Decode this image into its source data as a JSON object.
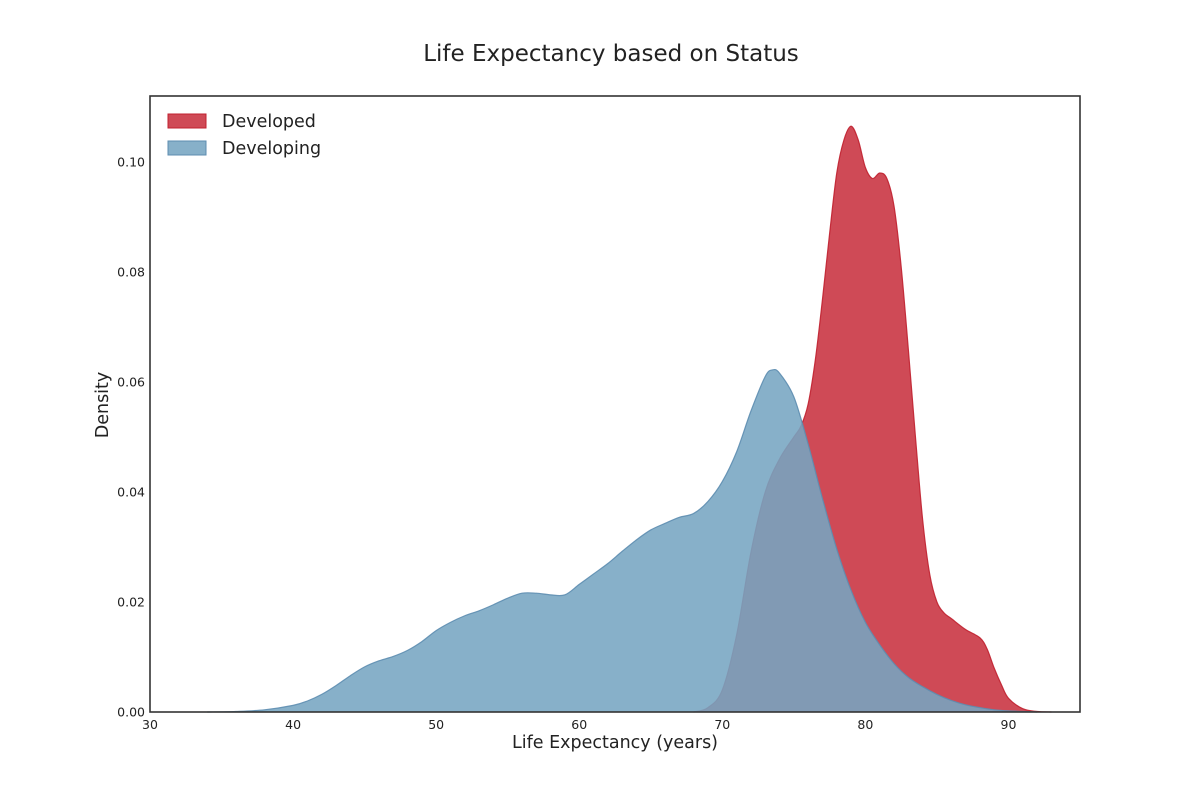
{
  "chart_data": {
    "type": "area",
    "title": "Life Expectancy based on Status",
    "xlabel": "Life Expectancy (years)",
    "ylabel": "Density",
    "xlim": [
      30,
      95
    ],
    "ylim": [
      0,
      0.112
    ],
    "x_ticks": [
      30,
      40,
      50,
      60,
      70,
      80,
      90
    ],
    "x_tick_labels": [
      "30",
      "40",
      "50",
      "60",
      "70",
      "80",
      "90"
    ],
    "y_ticks": [
      0,
      0.02,
      0.04,
      0.06,
      0.08,
      0.1
    ],
    "y_tick_labels": [
      "0.00",
      "0.02",
      "0.04",
      "0.06",
      "0.08",
      "0.10"
    ],
    "grid": false,
    "legend_position": "top-left",
    "series": [
      {
        "name": "Developed",
        "color": "#c0202f",
        "fill_color": "#c8313f",
        "x": [
          68,
          69,
          70,
          71,
          72,
          73,
          74,
          75,
          75.5,
          76,
          76.5,
          77,
          77.5,
          78,
          78.5,
          79,
          79.5,
          80,
          80.5,
          81,
          81.5,
          82,
          82.5,
          83,
          83.5,
          84,
          84.5,
          85,
          85.5,
          86,
          87,
          88,
          88.5,
          89,
          89.5,
          90,
          91,
          92,
          93
        ],
        "y": [
          0,
          0.0008,
          0.004,
          0.014,
          0.029,
          0.04,
          0.046,
          0.05,
          0.052,
          0.056,
          0.064,
          0.075,
          0.087,
          0.098,
          0.104,
          0.1065,
          0.104,
          0.099,
          0.097,
          0.098,
          0.097,
          0.092,
          0.081,
          0.066,
          0.05,
          0.035,
          0.025,
          0.02,
          0.018,
          0.017,
          0.015,
          0.0135,
          0.0115,
          0.008,
          0.005,
          0.0025,
          0.0006,
          0.0001,
          0
        ]
      },
      {
        "name": "Developing",
        "color": "#5d8db0",
        "fill_color": "#76a5c2",
        "x": [
          34,
          36,
          38,
          40,
          41,
          42,
          43,
          44,
          45,
          46,
          47,
          48,
          49,
          50,
          51,
          52,
          53,
          54,
          55,
          56,
          57,
          58,
          59,
          60,
          61,
          62,
          63,
          64,
          65,
          66,
          67,
          68,
          69,
          70,
          71,
          72,
          73,
          73.5,
          74,
          75,
          76,
          77,
          78,
          79,
          80,
          81,
          82,
          83,
          84,
          85,
          86,
          87,
          88,
          89,
          90,
          91,
          92
        ],
        "y": [
          0,
          0.0001,
          0.0004,
          0.0012,
          0.002,
          0.0032,
          0.0048,
          0.0066,
          0.0082,
          0.0093,
          0.0101,
          0.0112,
          0.0128,
          0.0148,
          0.0163,
          0.0175,
          0.0184,
          0.0195,
          0.0207,
          0.0216,
          0.0216,
          0.0213,
          0.0213,
          0.0232,
          0.0251,
          0.027,
          0.0292,
          0.0313,
          0.0331,
          0.0343,
          0.0354,
          0.0361,
          0.0383,
          0.0419,
          0.0473,
          0.0547,
          0.061,
          0.0622,
          0.0616,
          0.0573,
          0.0487,
          0.0388,
          0.0296,
          0.0221,
          0.0163,
          0.0122,
          0.0088,
          0.0063,
          0.0046,
          0.0032,
          0.0021,
          0.0013,
          0.0008,
          0.0004,
          0.0002,
          0.0001,
          0
        ]
      }
    ]
  }
}
